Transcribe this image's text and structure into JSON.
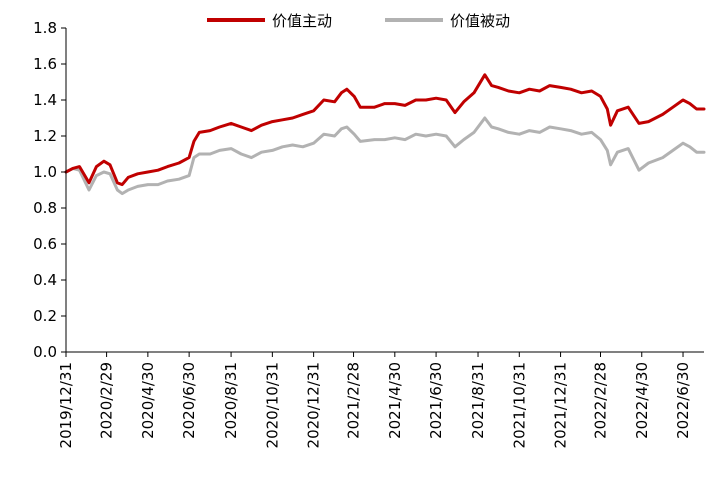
{
  "chart_data": {
    "type": "line",
    "ylim": [
      0.0,
      1.8
    ],
    "yticks": [
      "0.0",
      "0.2",
      "0.4",
      "0.6",
      "0.8",
      "1.0",
      "1.2",
      "1.4",
      "1.6",
      "1.8"
    ],
    "x_range": [
      "2019-12-31",
      "2022-07-31"
    ],
    "xticks": [
      {
        "date": "2019-12-31",
        "label": "2019/12/31"
      },
      {
        "date": "2020-02-29",
        "label": "2020/2/29"
      },
      {
        "date": "2020-04-30",
        "label": "2020/4/30"
      },
      {
        "date": "2020-06-30",
        "label": "2020/6/30"
      },
      {
        "date": "2020-08-31",
        "label": "2020/8/31"
      },
      {
        "date": "2020-10-31",
        "label": "2020/10/31"
      },
      {
        "date": "2020-12-31",
        "label": "2020/12/31"
      },
      {
        "date": "2021-02-28",
        "label": "2021/2/28"
      },
      {
        "date": "2021-04-30",
        "label": "2021/4/30"
      },
      {
        "date": "2021-06-30",
        "label": "2021/6/30"
      },
      {
        "date": "2021-08-31",
        "label": "2021/8/31"
      },
      {
        "date": "2021-10-31",
        "label": "2021/10/31"
      },
      {
        "date": "2021-12-31",
        "label": "2021/12/31"
      },
      {
        "date": "2022-02-28",
        "label": "2022/2/28"
      },
      {
        "date": "2022-04-30",
        "label": "2022/4/30"
      },
      {
        "date": "2022-06-30",
        "label": "2022/6/30"
      }
    ],
    "legend": "top-center",
    "grid": false,
    "series": [
      {
        "name": "价值主动",
        "color": "#c00000",
        "points": [
          [
            "2019-12-31",
            1.0
          ],
          [
            "2020-01-10",
            1.02
          ],
          [
            "2020-01-20",
            1.03
          ],
          [
            "2020-02-03",
            0.94
          ],
          [
            "2020-02-14",
            1.03
          ],
          [
            "2020-02-25",
            1.06
          ],
          [
            "2020-03-05",
            1.04
          ],
          [
            "2020-03-16",
            0.94
          ],
          [
            "2020-03-23",
            0.93
          ],
          [
            "2020-04-01",
            0.97
          ],
          [
            "2020-04-15",
            0.99
          ],
          [
            "2020-04-30",
            1.0
          ],
          [
            "2020-05-15",
            1.01
          ],
          [
            "2020-05-29",
            1.03
          ],
          [
            "2020-06-15",
            1.05
          ],
          [
            "2020-06-30",
            1.08
          ],
          [
            "2020-07-07",
            1.17
          ],
          [
            "2020-07-15",
            1.22
          ],
          [
            "2020-07-31",
            1.23
          ],
          [
            "2020-08-14",
            1.25
          ],
          [
            "2020-08-31",
            1.27
          ],
          [
            "2020-09-15",
            1.25
          ],
          [
            "2020-09-30",
            1.23
          ],
          [
            "2020-10-15",
            1.26
          ],
          [
            "2020-10-31",
            1.28
          ],
          [
            "2020-11-15",
            1.29
          ],
          [
            "2020-11-30",
            1.3
          ],
          [
            "2020-12-15",
            1.32
          ],
          [
            "2020-12-31",
            1.34
          ],
          [
            "2021-01-15",
            1.4
          ],
          [
            "2021-01-31",
            1.39
          ],
          [
            "2021-02-10",
            1.44
          ],
          [
            "2021-02-18",
            1.46
          ],
          [
            "2021-03-01",
            1.42
          ],
          [
            "2021-03-10",
            1.36
          ],
          [
            "2021-03-31",
            1.36
          ],
          [
            "2021-04-15",
            1.38
          ],
          [
            "2021-04-30",
            1.38
          ],
          [
            "2021-05-15",
            1.37
          ],
          [
            "2021-05-31",
            1.4
          ],
          [
            "2021-06-15",
            1.4
          ],
          [
            "2021-06-30",
            1.41
          ],
          [
            "2021-07-15",
            1.4
          ],
          [
            "2021-07-28",
            1.33
          ],
          [
            "2021-08-10",
            1.39
          ],
          [
            "2021-08-25",
            1.44
          ],
          [
            "2021-09-10",
            1.54
          ],
          [
            "2021-09-20",
            1.48
          ],
          [
            "2021-09-30",
            1.47
          ],
          [
            "2021-10-15",
            1.45
          ],
          [
            "2021-10-31",
            1.44
          ],
          [
            "2021-11-15",
            1.46
          ],
          [
            "2021-11-30",
            1.45
          ],
          [
            "2021-12-15",
            1.48
          ],
          [
            "2021-12-31",
            1.47
          ],
          [
            "2022-01-15",
            1.46
          ],
          [
            "2022-01-31",
            1.44
          ],
          [
            "2022-02-15",
            1.45
          ],
          [
            "2022-02-28",
            1.42
          ],
          [
            "2022-03-10",
            1.35
          ],
          [
            "2022-03-15",
            1.26
          ],
          [
            "2022-03-25",
            1.34
          ],
          [
            "2022-04-10",
            1.36
          ],
          [
            "2022-04-26",
            1.27
          ],
          [
            "2022-05-10",
            1.28
          ],
          [
            "2022-05-31",
            1.32
          ],
          [
            "2022-06-15",
            1.36
          ],
          [
            "2022-06-30",
            1.4
          ],
          [
            "2022-07-10",
            1.38
          ],
          [
            "2022-07-20",
            1.35
          ],
          [
            "2022-07-31",
            1.35
          ]
        ]
      },
      {
        "name": "价值被动",
        "color": "#b2b2b2",
        "points": [
          [
            "2019-12-31",
            1.0
          ],
          [
            "2020-01-10",
            1.02
          ],
          [
            "2020-01-20",
            1.01
          ],
          [
            "2020-02-03",
            0.9
          ],
          [
            "2020-02-14",
            0.98
          ],
          [
            "2020-02-25",
            1.0
          ],
          [
            "2020-03-05",
            0.99
          ],
          [
            "2020-03-16",
            0.9
          ],
          [
            "2020-03-23",
            0.88
          ],
          [
            "2020-04-01",
            0.9
          ],
          [
            "2020-04-15",
            0.92
          ],
          [
            "2020-04-30",
            0.93
          ],
          [
            "2020-05-15",
            0.93
          ],
          [
            "2020-05-29",
            0.95
          ],
          [
            "2020-06-15",
            0.96
          ],
          [
            "2020-06-30",
            0.98
          ],
          [
            "2020-07-07",
            1.08
          ],
          [
            "2020-07-15",
            1.1
          ],
          [
            "2020-07-31",
            1.1
          ],
          [
            "2020-08-14",
            1.12
          ],
          [
            "2020-08-31",
            1.13
          ],
          [
            "2020-09-15",
            1.1
          ],
          [
            "2020-09-30",
            1.08
          ],
          [
            "2020-10-15",
            1.11
          ],
          [
            "2020-10-31",
            1.12
          ],
          [
            "2020-11-15",
            1.14
          ],
          [
            "2020-11-30",
            1.15
          ],
          [
            "2020-12-15",
            1.14
          ],
          [
            "2020-12-31",
            1.16
          ],
          [
            "2021-01-15",
            1.21
          ],
          [
            "2021-01-31",
            1.2
          ],
          [
            "2021-02-10",
            1.24
          ],
          [
            "2021-02-18",
            1.25
          ],
          [
            "2021-03-01",
            1.21
          ],
          [
            "2021-03-10",
            1.17
          ],
          [
            "2021-03-31",
            1.18
          ],
          [
            "2021-04-15",
            1.18
          ],
          [
            "2021-04-30",
            1.19
          ],
          [
            "2021-05-15",
            1.18
          ],
          [
            "2021-05-31",
            1.21
          ],
          [
            "2021-06-15",
            1.2
          ],
          [
            "2021-06-30",
            1.21
          ],
          [
            "2021-07-15",
            1.2
          ],
          [
            "2021-07-28",
            1.14
          ],
          [
            "2021-08-10",
            1.18
          ],
          [
            "2021-08-25",
            1.22
          ],
          [
            "2021-09-10",
            1.3
          ],
          [
            "2021-09-20",
            1.25
          ],
          [
            "2021-09-30",
            1.24
          ],
          [
            "2021-10-15",
            1.22
          ],
          [
            "2021-10-31",
            1.21
          ],
          [
            "2021-11-15",
            1.23
          ],
          [
            "2021-11-30",
            1.22
          ],
          [
            "2021-12-15",
            1.25
          ],
          [
            "2021-12-31",
            1.24
          ],
          [
            "2022-01-15",
            1.23
          ],
          [
            "2022-01-31",
            1.21
          ],
          [
            "2022-02-15",
            1.22
          ],
          [
            "2022-02-28",
            1.18
          ],
          [
            "2022-03-10",
            1.12
          ],
          [
            "2022-03-15",
            1.04
          ],
          [
            "2022-03-25",
            1.11
          ],
          [
            "2022-04-10",
            1.13
          ],
          [
            "2022-04-26",
            1.01
          ],
          [
            "2022-05-10",
            1.05
          ],
          [
            "2022-05-31",
            1.08
          ],
          [
            "2022-06-15",
            1.12
          ],
          [
            "2022-06-30",
            1.16
          ],
          [
            "2022-07-10",
            1.14
          ],
          [
            "2022-07-20",
            1.11
          ],
          [
            "2022-07-31",
            1.11
          ]
        ]
      }
    ]
  }
}
